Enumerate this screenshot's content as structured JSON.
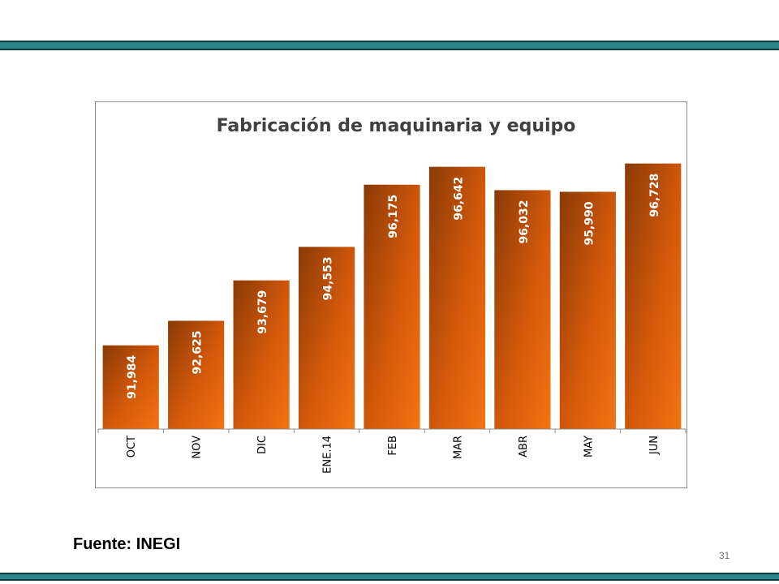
{
  "slide": {
    "source_label": "Fuente: INEGI",
    "page_number": "31",
    "band_color": "#2a8787"
  },
  "chart_data": {
    "type": "bar",
    "title": "Fabricación de maquinaria y equipo",
    "categories": [
      "OCT",
      "NOV",
      "DIC",
      "ENE.14",
      "FEB",
      "MAR",
      "ABR",
      "MAY",
      "JUN"
    ],
    "values": [
      91984,
      92625,
      93679,
      94553,
      96175,
      96642,
      96032,
      95990,
      96728
    ],
    "value_labels": [
      "91,984",
      "92,625",
      "93,679",
      "94,553",
      "96,175",
      "96,642",
      "96,032",
      "95,990",
      "96,728"
    ],
    "xlabel": "",
    "ylabel": "",
    "ylim": [
      89800,
      97100
    ],
    "grid": false,
    "legend": "none",
    "bar_color_dark": "#8a3a06",
    "bar_color_light": "#f07010"
  }
}
